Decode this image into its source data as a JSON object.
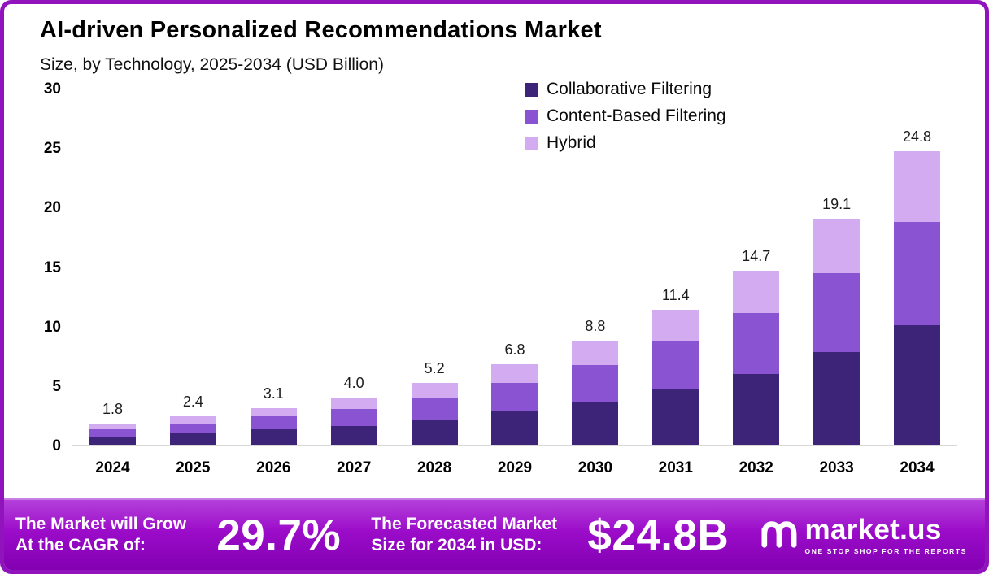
{
  "page": {
    "title": "AI-driven Personalized Recommendations Market",
    "subtitle": "Size, by Technology, 2025-2034 (USD Billion)"
  },
  "chart_data": {
    "type": "bar",
    "stacked": true,
    "title": "AI-driven Personalized Recommendations Market Size, by Technology, 2025-2034 (USD Billion)",
    "categories": [
      "2024",
      "2025",
      "2026",
      "2027",
      "2028",
      "2029",
      "2030",
      "2031",
      "2032",
      "2033",
      "2034"
    ],
    "series": [
      {
        "name": "Collaborative Filtering",
        "color": "#3e2479",
        "values": [
          0.7,
          1.0,
          1.3,
          1.6,
          2.1,
          2.8,
          3.6,
          4.7,
          6.0,
          7.8,
          10.1
        ]
      },
      {
        "name": "Content-Based Filtering",
        "color": "#8a53d2",
        "values": [
          0.6,
          0.8,
          1.1,
          1.4,
          1.8,
          2.4,
          3.1,
          4.0,
          5.1,
          6.7,
          8.7
        ]
      },
      {
        "name": "Hybrid",
        "color": "#d3abf1",
        "values": [
          0.5,
          0.6,
          0.7,
          1.0,
          1.3,
          1.6,
          2.1,
          2.7,
          3.6,
          4.6,
          6.0
        ]
      }
    ],
    "totals": [
      1.8,
      2.4,
      3.1,
      4.0,
      5.2,
      6.8,
      8.8,
      11.4,
      14.7,
      19.1,
      24.8
    ],
    "total_labels": [
      "1.8",
      "2.4",
      "3.1",
      "4.0",
      "5.2",
      "6.8",
      "8.8",
      "11.4",
      "14.7",
      "19.1",
      "24.8"
    ],
    "xlabel": "",
    "ylabel": "",
    "ylim": [
      0,
      30
    ],
    "yticks": [
      0,
      5,
      10,
      15,
      20,
      25,
      30
    ],
    "grid": false,
    "legend_position": "top-right"
  },
  "footer": {
    "cagr_label_line1": "The Market will Grow",
    "cagr_label_line2": "At the CAGR of:",
    "cagr_value": "29.7%",
    "forecast_label_line1": "The Forecasted Market",
    "forecast_label_line2": "Size for 2034 in USD:",
    "forecast_value": "$24.8B",
    "brand_name": "market.us",
    "brand_tagline": "ONE STOP SHOP FOR THE REPORTS"
  },
  "colors": {
    "border": "#9013bb",
    "banner_top": "#b440da",
    "banner_bottom": "#8200b2",
    "series_dark": "#3e2479",
    "series_mid": "#8a53d2",
    "series_light": "#d3abf1"
  }
}
